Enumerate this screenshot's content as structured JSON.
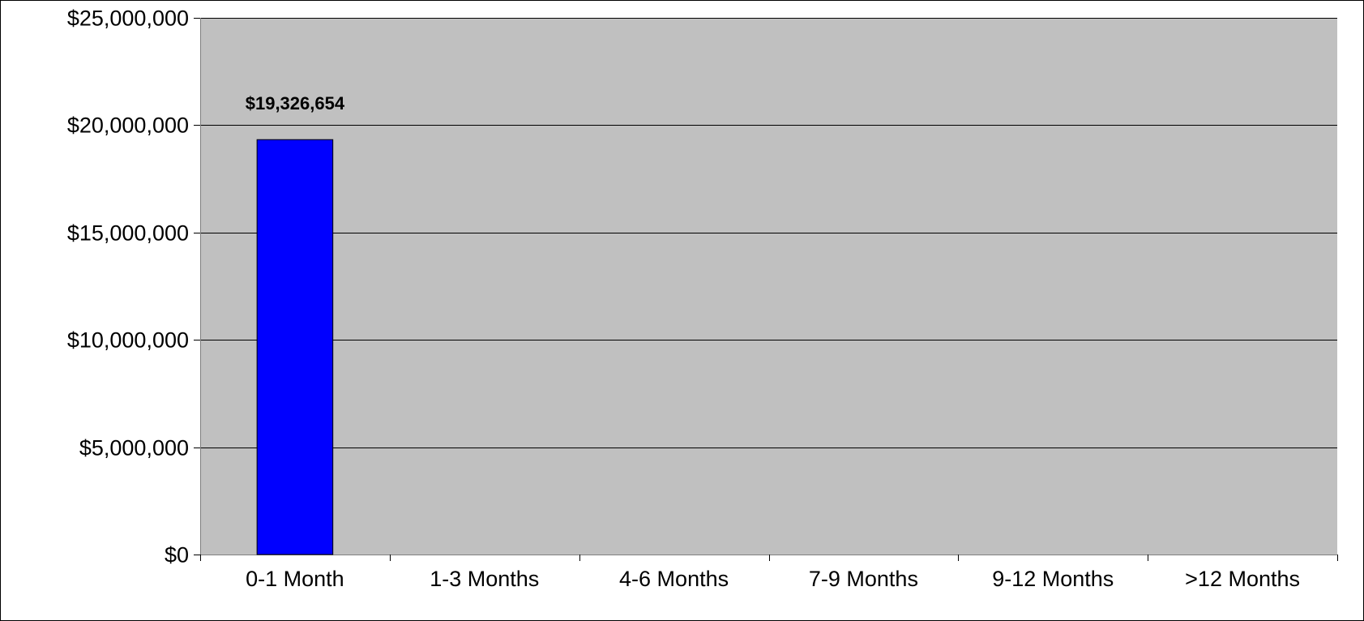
{
  "chart_data": {
    "type": "bar",
    "categories": [
      "0-1 Month",
      "1-3 Months",
      "4-6 Months",
      "7-9 Months",
      "9-12 Months",
      ">12 Months"
    ],
    "values": [
      19326654,
      null,
      null,
      null,
      null,
      null
    ],
    "data_labels": [
      "$19,326,654",
      "",
      "",
      "",
      "",
      ""
    ],
    "title": "",
    "xlabel": "",
    "ylabel": "",
    "ylim": [
      0,
      25000000
    ],
    "y_ticks": [
      0,
      5000000,
      10000000,
      15000000,
      20000000,
      25000000
    ],
    "y_tick_labels": [
      "$0",
      "$5,000,000",
      "$10,000,000",
      "$15,000,000",
      "$20,000,000",
      "$25,000,000"
    ],
    "grid": true,
    "legend": "none",
    "colors": {
      "bar": "#0000FF",
      "bar_edge": "#000000",
      "plot_background": "#C0C0C0",
      "gridline": "#000000"
    }
  }
}
